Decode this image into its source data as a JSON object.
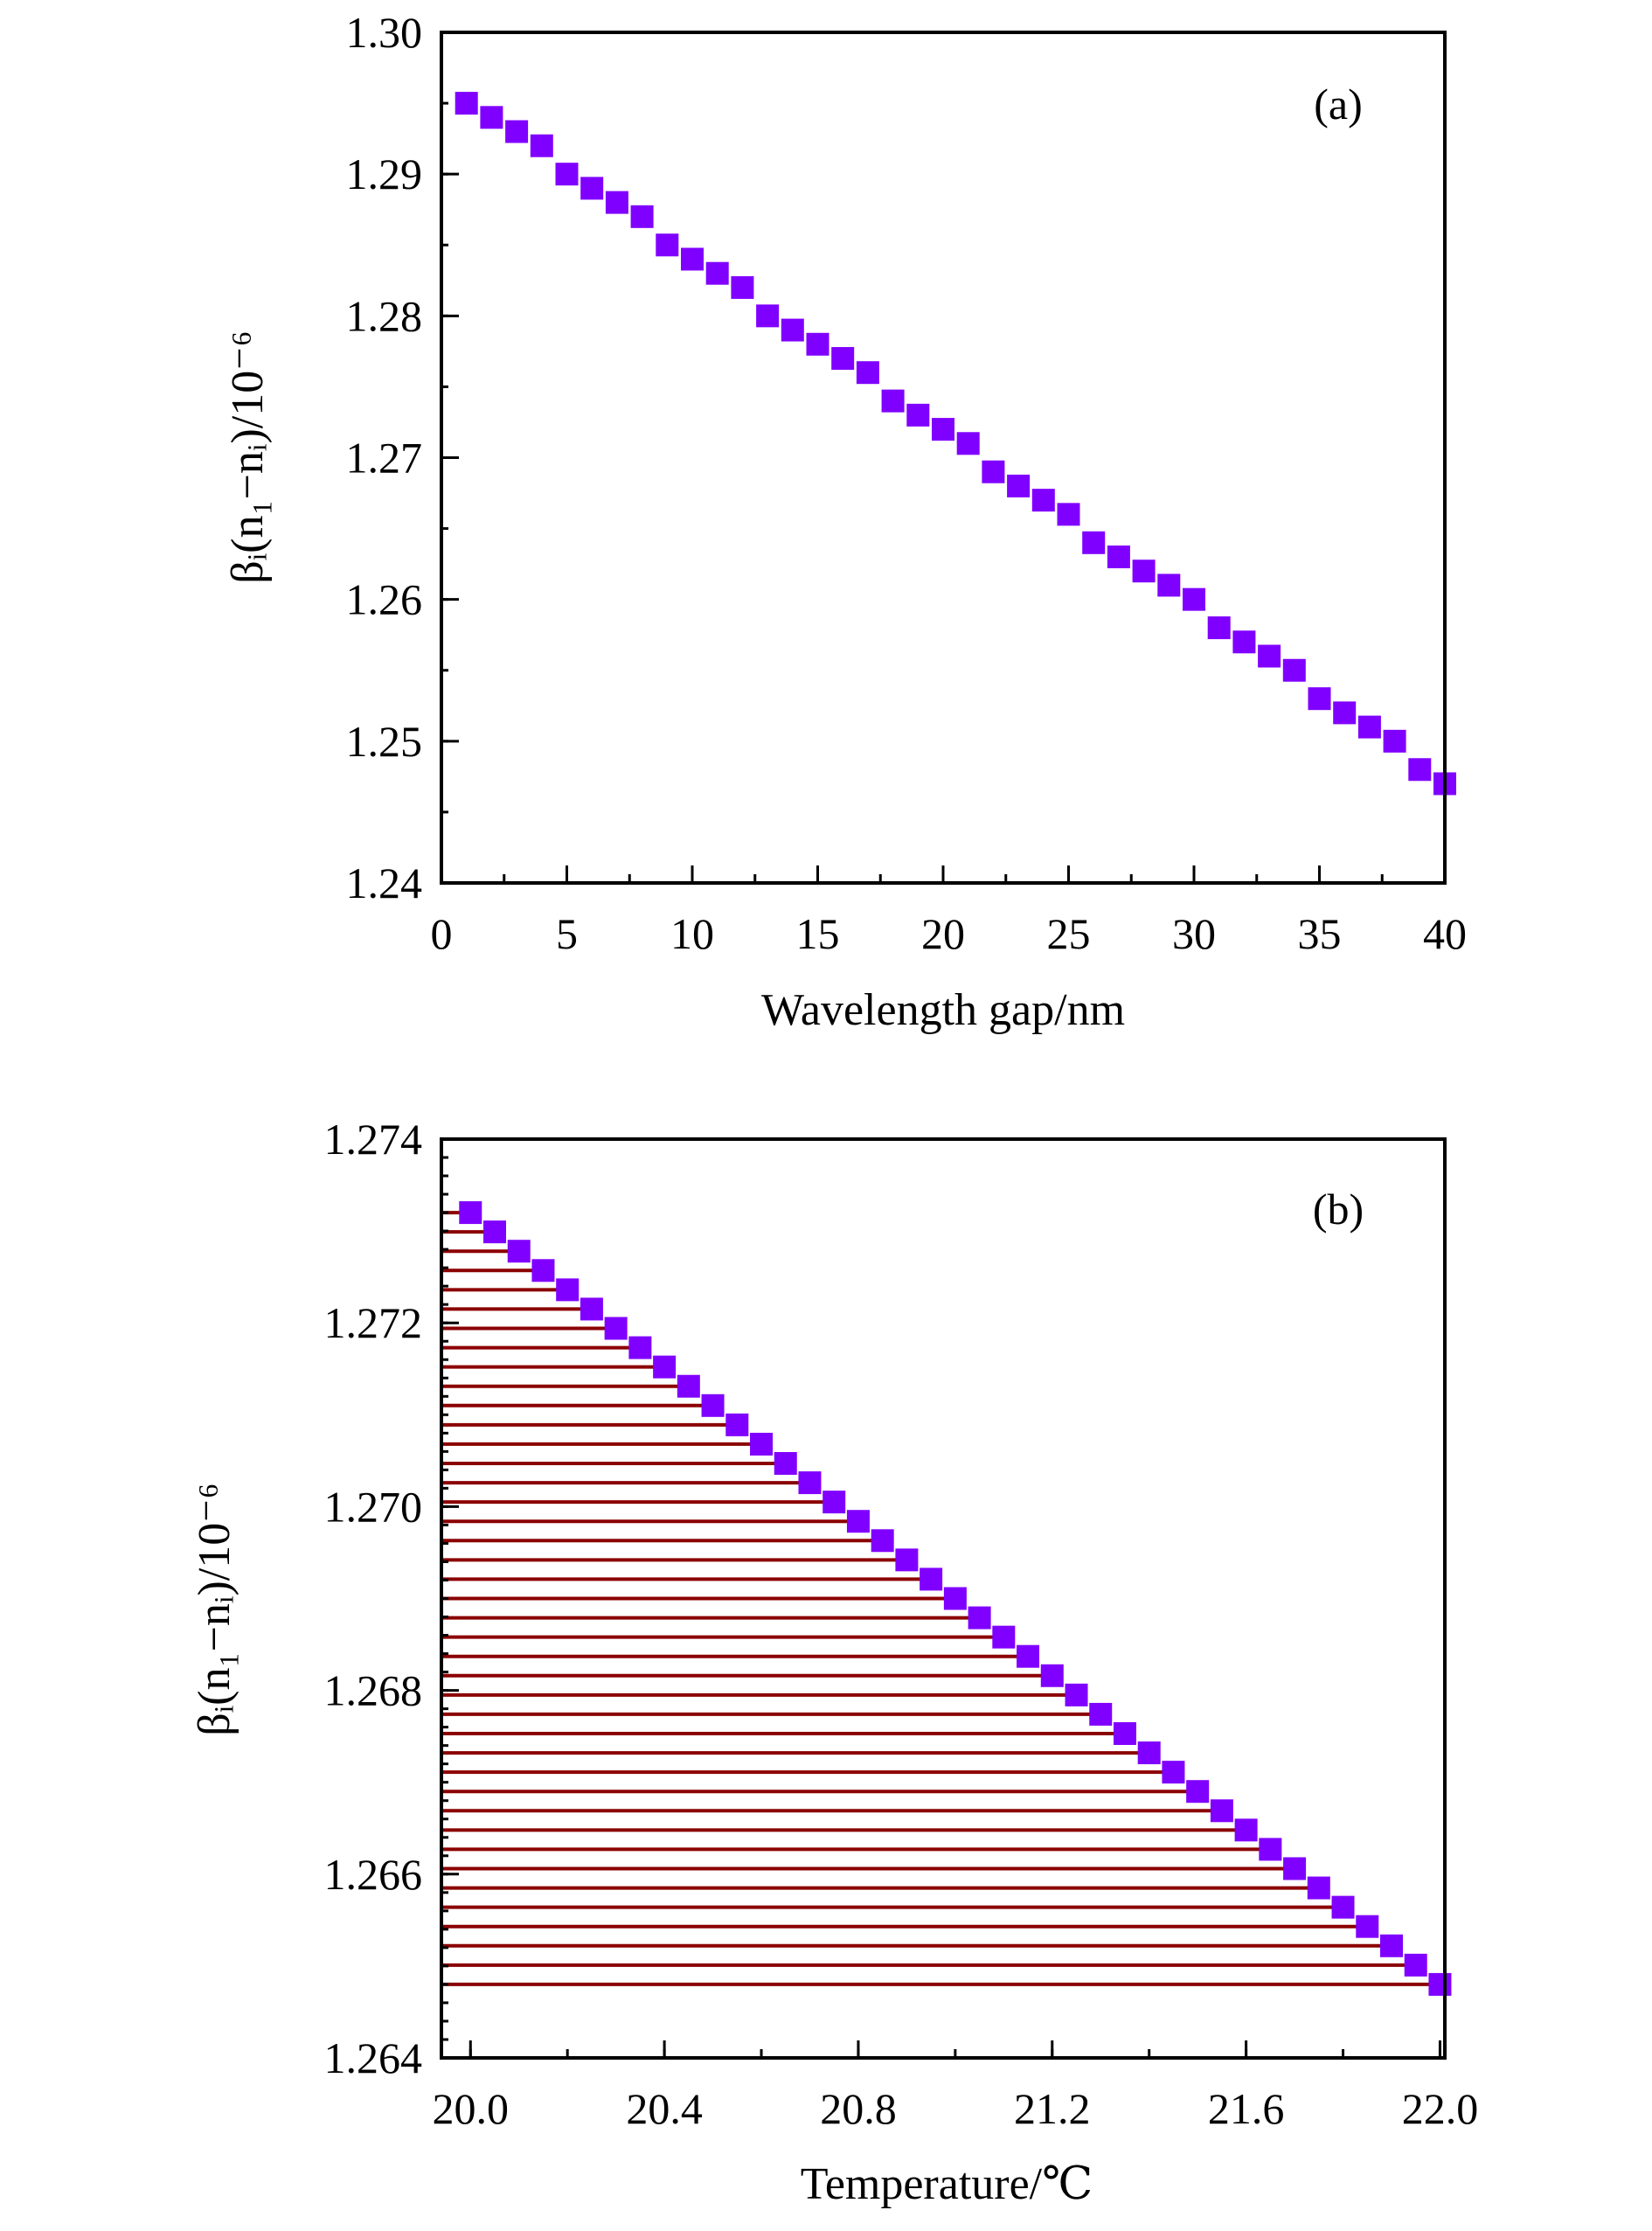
{
  "colors": {
    "marker": "#8000ff",
    "stem": "#8b0000",
    "axis": "#000000"
  },
  "chart_data": [
    {
      "type": "scatter",
      "panel_label": "(a)",
      "xlabel": "Wavelength gap/nm",
      "ylabel": "βᵢ(n₁−nᵢ)/10⁻⁶",
      "xlim": [
        0,
        40
      ],
      "ylim": [
        1.24,
        1.3
      ],
      "xticks": [
        0,
        5,
        10,
        15,
        20,
        25,
        30,
        35,
        40
      ],
      "xtick_labels": [
        "0",
        "5",
        "10",
        "15",
        "20",
        "25",
        "30",
        "35",
        "40"
      ],
      "yticks": [
        1.24,
        1.25,
        1.26,
        1.27,
        1.28,
        1.29,
        1.3
      ],
      "ytick_labels": [
        "1.24",
        "1.25",
        "1.26",
        "1.27",
        "1.28",
        "1.29",
        "1.30"
      ],
      "x_minor_step": 2.5,
      "y_minor_step": 0.005,
      "grid": false,
      "marker": "square",
      "stems": false,
      "x": [
        1,
        2,
        3,
        4,
        5,
        6,
        7,
        8,
        9,
        10,
        11,
        12,
        13,
        14,
        15,
        16,
        17,
        18,
        19,
        20,
        21,
        22,
        23,
        24,
        25,
        26,
        27,
        28,
        29,
        30,
        31,
        32,
        33,
        34,
        35,
        36,
        37,
        38,
        39,
        40
      ],
      "y": [
        1.295,
        1.294,
        1.293,
        1.292,
        1.29,
        1.289,
        1.288,
        1.287,
        1.285,
        1.284,
        1.283,
        1.282,
        1.28,
        1.279,
        1.278,
        1.277,
        1.276,
        1.274,
        1.273,
        1.272,
        1.271,
        1.269,
        1.268,
        1.267,
        1.266,
        1.264,
        1.263,
        1.262,
        1.261,
        1.26,
        1.258,
        1.257,
        1.256,
        1.255,
        1.253,
        1.252,
        1.251,
        1.25,
        1.248,
        1.247
      ]
    },
    {
      "type": "scatter",
      "panel_label": "(b)",
      "xlabel": "Temperature/℃",
      "ylabel": "βᵢ(n₁−nᵢ)/10⁻⁶",
      "xlim": [
        19.94,
        22.01
      ],
      "ylim": [
        1.264,
        1.274
      ],
      "xticks": [
        20.0,
        20.4,
        20.8,
        21.2,
        21.6,
        22.0
      ],
      "xtick_labels": [
        "20.0",
        "20.4",
        "20.8",
        "21.2",
        "21.6",
        "22.0"
      ],
      "yticks": [
        1.264,
        1.266,
        1.268,
        1.27,
        1.272,
        1.274
      ],
      "ytick_labels": [
        "1.264",
        "1.266",
        "1.268",
        "1.270",
        "1.272",
        "1.274"
      ],
      "x_minor_step": 0.2,
      "y_minor_step": 0.0002,
      "grid": false,
      "marker": "square",
      "stems": true,
      "x": [
        20.0,
        20.05,
        20.1,
        20.15,
        20.2,
        20.25,
        20.3,
        20.35,
        20.4,
        20.45,
        20.5,
        20.55,
        20.6,
        20.65,
        20.7,
        20.75,
        20.8,
        20.85,
        20.9,
        20.95,
        21.0,
        21.05,
        21.1,
        21.15,
        21.2,
        21.25,
        21.3,
        21.35,
        21.4,
        21.45,
        21.5,
        21.55,
        21.6,
        21.65,
        21.7,
        21.75,
        21.8,
        21.85,
        21.9,
        21.95,
        22.0
      ],
      "y": [
        1.2732,
        1.27299,
        1.27278,
        1.27257,
        1.27236,
        1.27215,
        1.27194,
        1.27173,
        1.27152,
        1.27131,
        1.2711,
        1.27089,
        1.27068,
        1.27047,
        1.27026,
        1.27005,
        1.26984,
        1.26963,
        1.26942,
        1.26921,
        1.269,
        1.26879,
        1.26858,
        1.26837,
        1.26816,
        1.26795,
        1.26774,
        1.26753,
        1.26732,
        1.26711,
        1.2669,
        1.26669,
        1.26648,
        1.26627,
        1.26606,
        1.26585,
        1.26564,
        1.26543,
        1.26522,
        1.26501,
        1.2648
      ]
    }
  ]
}
